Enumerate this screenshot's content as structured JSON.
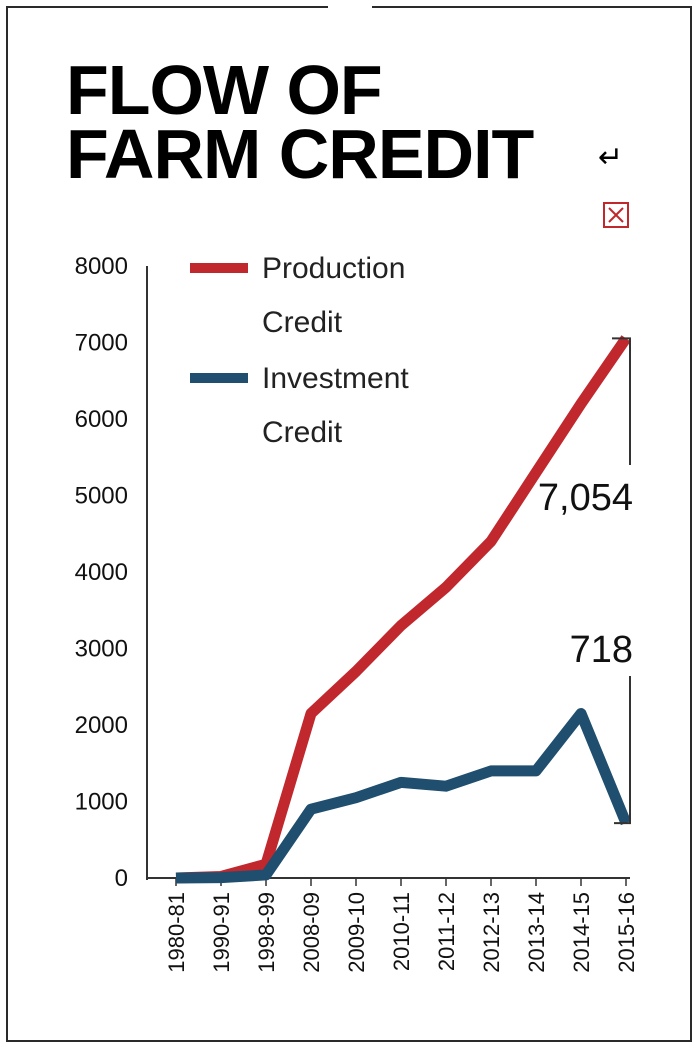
{
  "title": {
    "line1": "FLOW OF",
    "line2": "FARM CREDIT"
  },
  "marks": {
    "return_icon": "return-arrow-icon",
    "box_icon": "crossed-box-icon",
    "return_glyph": "↵"
  },
  "chart_data": {
    "type": "line",
    "categories": [
      "1980-81",
      "1990-91",
      "1998-99",
      "2008-09",
      "2009-10",
      "2010-11",
      "2011-12",
      "2012-13",
      "2013-14",
      "2014-15",
      "2015-16"
    ],
    "series": [
      {
        "name": "Production Credit",
        "legend_lines": [
          "Production",
          "Credit"
        ],
        "color": "#c0282e",
        "values": [
          0,
          20,
          180,
          2150,
          2700,
          3300,
          3800,
          4400,
          5300,
          6200,
          7054
        ]
      },
      {
        "name": "Investment Credit",
        "legend_lines": [
          "Investment",
          "Credit"
        ],
        "color": "#1f4e6e",
        "values": [
          0,
          5,
          40,
          900,
          1050,
          1250,
          1200,
          1400,
          1400,
          2150,
          718
        ]
      }
    ],
    "y_ticks": [
      "0",
      "1000",
      "2000",
      "3000",
      "4000",
      "5000",
      "6000",
      "7000",
      "8000"
    ],
    "ylim": [
      0,
      8000
    ],
    "callouts": [
      {
        "label": "7,054",
        "series": 0
      },
      {
        "label": "718",
        "series": 1
      }
    ],
    "grid": false,
    "legend_position": "top-left"
  }
}
